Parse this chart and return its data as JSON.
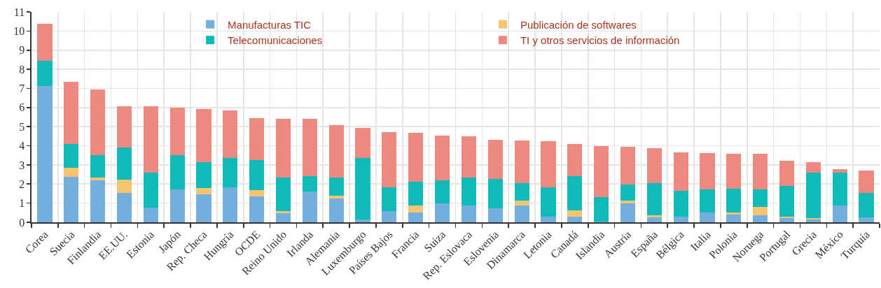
{
  "chart_data": {
    "type": "bar",
    "stacked": true,
    "categories": [
      "Corea",
      "Suecia",
      "Finlandia",
      "EE.UU.",
      "Estonia",
      "Japón",
      "Rep. Checa",
      "Hungría",
      "OCDE",
      "Reino Unido",
      "Irlanda",
      "Alemania",
      "Luxemburgo",
      "Países Bajos",
      "Francia",
      "Suiza",
      "Rep. Eslovaca",
      "Eslovenia",
      "Dinamarca",
      "Letonia",
      "Canadá",
      "Islandia",
      "Austria",
      "España",
      "Bélgica",
      "Italia",
      "Polonia",
      "Noruega",
      "Portugal",
      "Grecia",
      "México",
      "Turquía"
    ],
    "series": [
      {
        "name": "Manufacturas TIC",
        "color": "#73aede",
        "values": [
          7.14,
          2.38,
          2.18,
          1.54,
          0.77,
          1.7,
          1.48,
          1.84,
          1.34,
          0.47,
          1.62,
          1.26,
          0.13,
          0.6,
          0.53,
          0.99,
          0.88,
          0.72,
          0.86,
          0.29,
          0.29,
          0.02,
          1.0,
          0.26,
          0.28,
          0.53,
          0.42,
          0.37,
          0.21,
          0.13,
          0.86,
          0.26
        ]
      },
      {
        "name": "Publicación de softwares",
        "color": "#f6c471",
        "values": [
          0,
          0.48,
          0.16,
          0.69,
          0,
          0,
          0.32,
          0,
          0.34,
          0.11,
          0,
          0.14,
          0,
          0,
          0.35,
          0,
          0,
          0,
          0.28,
          0,
          0.34,
          0,
          0.12,
          0.1,
          0,
          0,
          0.08,
          0.43,
          0.1,
          0.1,
          0,
          0
        ]
      },
      {
        "name": "Telecomunicaciones",
        "color": "#0fbbb9",
        "values": [
          1.29,
          1.22,
          1.16,
          1.68,
          1.84,
          1.82,
          1.36,
          1.54,
          1.56,
          1.77,
          0.78,
          0.95,
          3.23,
          1.23,
          1.24,
          1.22,
          1.47,
          1.56,
          0.92,
          1.52,
          1.78,
          1.28,
          0.84,
          1.7,
          1.35,
          1.17,
          1.26,
          0.93,
          1.59,
          2.38,
          1.74,
          1.28
        ]
      },
      {
        "name": "TI y otros servicios de información",
        "color": "#ec8a7f",
        "values": [
          1.96,
          3.27,
          3.45,
          2.16,
          3.44,
          2.48,
          2.76,
          2.47,
          2.19,
          3.05,
          3.0,
          2.72,
          1.57,
          2.88,
          2.55,
          2.34,
          2.15,
          2.05,
          2.22,
          2.42,
          1.67,
          2.7,
          2.0,
          1.82,
          2.03,
          1.9,
          1.82,
          1.85,
          1.31,
          0.52,
          0.18,
          1.17
        ]
      }
    ],
    "ylim": [
      0,
      11
    ],
    "yticks": [
      0,
      1,
      2,
      3,
      4,
      5,
      6,
      7,
      8,
      9,
      10,
      11
    ],
    "grid": true,
    "legend": "top"
  }
}
